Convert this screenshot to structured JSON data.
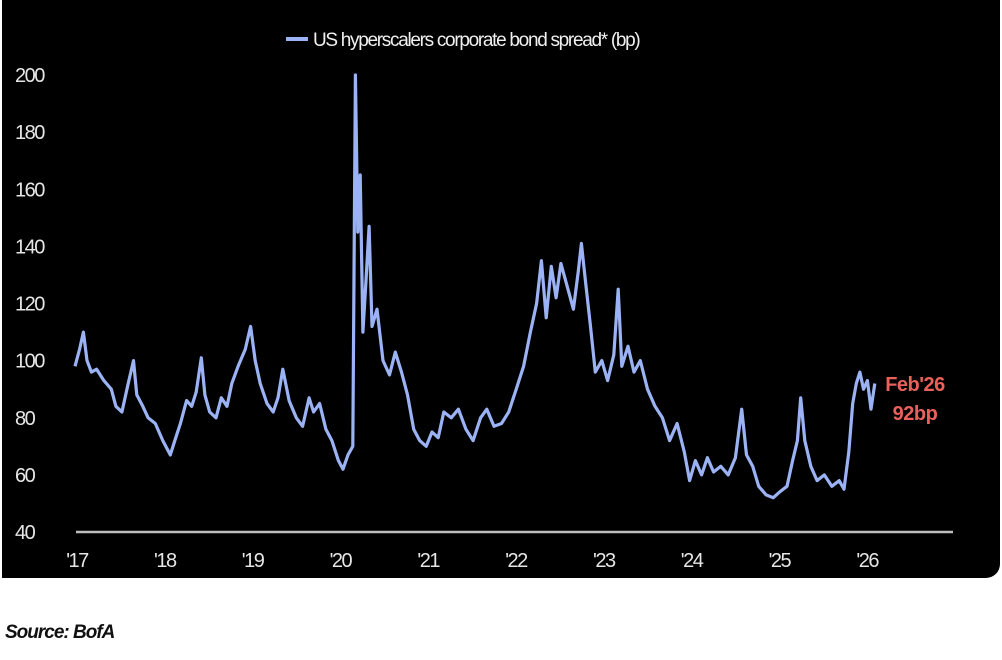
{
  "chart_data": {
    "type": "line",
    "title": "",
    "xlabel": "",
    "ylabel": "",
    "background": "#000000",
    "legend": {
      "placement": "top-center",
      "entries": [
        "US hyperscalers corporate bond spread* (bp)"
      ]
    },
    "ylim": [
      40,
      200
    ],
    "yticks": [
      40,
      60,
      80,
      100,
      120,
      140,
      160,
      180,
      200
    ],
    "xlim": [
      "2017-01-01",
      "2027-01-01"
    ],
    "xticks": [
      {
        "date": "2017-01-01",
        "label": "'17"
      },
      {
        "date": "2018-01-01",
        "label": "'18"
      },
      {
        "date": "2019-01-01",
        "label": "'19"
      },
      {
        "date": "2020-01-01",
        "label": "'20"
      },
      {
        "date": "2021-01-01",
        "label": "'21"
      },
      {
        "date": "2022-01-01",
        "label": "'22"
      },
      {
        "date": "2023-01-01",
        "label": "'23"
      },
      {
        "date": "2024-01-01",
        "label": "'24"
      },
      {
        "date": "2025-01-01",
        "label": "'25"
      },
      {
        "date": "2026-01-01",
        "label": "'26"
      }
    ],
    "grid": false,
    "series": [
      {
        "name": "US hyperscalers corporate bond spread* (bp)",
        "color": "#9bb3f5",
        "points": [
          [
            "2017-01-01",
            98
          ],
          [
            "2017-01-20",
            104
          ],
          [
            "2017-02-05",
            110
          ],
          [
            "2017-02-20",
            100
          ],
          [
            "2017-03-10",
            96
          ],
          [
            "2017-04-01",
            97
          ],
          [
            "2017-05-01",
            93
          ],
          [
            "2017-06-01",
            90
          ],
          [
            "2017-06-20",
            84
          ],
          [
            "2017-07-15",
            82
          ],
          [
            "2017-08-10",
            92
          ],
          [
            "2017-09-01",
            100
          ],
          [
            "2017-09-15",
            88
          ],
          [
            "2017-10-10",
            84
          ],
          [
            "2017-11-01",
            80
          ],
          [
            "2017-12-01",
            78
          ],
          [
            "2018-01-01",
            72
          ],
          [
            "2018-02-01",
            67
          ],
          [
            "2018-02-20",
            72
          ],
          [
            "2018-03-15",
            78
          ],
          [
            "2018-04-10",
            86
          ],
          [
            "2018-05-01",
            84
          ],
          [
            "2018-05-20",
            89
          ],
          [
            "2018-06-10",
            101
          ],
          [
            "2018-06-25",
            88
          ],
          [
            "2018-07-15",
            82
          ],
          [
            "2018-08-10",
            80
          ],
          [
            "2018-09-01",
            87
          ],
          [
            "2018-09-25",
            84
          ],
          [
            "2018-10-15",
            92
          ],
          [
            "2018-11-10",
            98
          ],
          [
            "2018-12-10",
            104
          ],
          [
            "2019-01-01",
            112
          ],
          [
            "2019-01-20",
            100
          ],
          [
            "2019-02-10",
            92
          ],
          [
            "2019-03-10",
            85
          ],
          [
            "2019-04-05",
            82
          ],
          [
            "2019-04-25",
            87
          ],
          [
            "2019-05-15",
            97
          ],
          [
            "2019-06-10",
            86
          ],
          [
            "2019-07-10",
            80
          ],
          [
            "2019-08-05",
            77
          ],
          [
            "2019-09-01",
            87
          ],
          [
            "2019-09-20",
            82
          ],
          [
            "2019-10-15",
            85
          ],
          [
            "2019-11-10",
            76
          ],
          [
            "2019-12-05",
            72
          ],
          [
            "2020-01-01",
            65
          ],
          [
            "2020-01-20",
            62
          ],
          [
            "2020-02-10",
            67
          ],
          [
            "2020-03-01",
            70
          ],
          [
            "2020-03-12",
            200
          ],
          [
            "2020-03-22",
            145
          ],
          [
            "2020-04-01",
            165
          ],
          [
            "2020-04-12",
            110
          ],
          [
            "2020-04-25",
            128
          ],
          [
            "2020-05-08",
            147
          ],
          [
            "2020-05-20",
            112
          ],
          [
            "2020-06-10",
            118
          ],
          [
            "2020-07-05",
            100
          ],
          [
            "2020-08-01",
            95
          ],
          [
            "2020-08-25",
            103
          ],
          [
            "2020-09-20",
            96
          ],
          [
            "2020-10-15",
            88
          ],
          [
            "2020-11-10",
            76
          ],
          [
            "2020-12-05",
            72
          ],
          [
            "2021-01-01",
            70
          ],
          [
            "2021-01-25",
            75
          ],
          [
            "2021-02-20",
            73
          ],
          [
            "2021-03-15",
            82
          ],
          [
            "2021-04-15",
            80
          ],
          [
            "2021-05-15",
            83
          ],
          [
            "2021-06-15",
            76
          ],
          [
            "2021-07-15",
            72
          ],
          [
            "2021-08-15",
            80
          ],
          [
            "2021-09-10",
            83
          ],
          [
            "2021-10-10",
            77
          ],
          [
            "2021-11-10",
            78
          ],
          [
            "2021-12-10",
            82
          ],
          [
            "2022-01-10",
            90
          ],
          [
            "2022-02-10",
            98
          ],
          [
            "2022-03-10",
            110
          ],
          [
            "2022-04-05",
            120
          ],
          [
            "2022-04-25",
            135
          ],
          [
            "2022-05-15",
            115
          ],
          [
            "2022-06-05",
            133
          ],
          [
            "2022-06-25",
            122
          ],
          [
            "2022-07-15",
            134
          ],
          [
            "2022-08-10",
            126
          ],
          [
            "2022-09-05",
            118
          ],
          [
            "2022-09-25",
            131
          ],
          [
            "2022-10-08",
            141
          ],
          [
            "2022-10-25",
            128
          ],
          [
            "2022-11-15",
            112
          ],
          [
            "2022-12-05",
            96
          ],
          [
            "2023-01-01",
            100
          ],
          [
            "2023-01-25",
            93
          ],
          [
            "2023-02-20",
            102
          ],
          [
            "2023-03-10",
            125
          ],
          [
            "2023-03-25",
            98
          ],
          [
            "2023-04-20",
            105
          ],
          [
            "2023-05-15",
            96
          ],
          [
            "2023-06-10",
            100
          ],
          [
            "2023-07-10",
            90
          ],
          [
            "2023-08-10",
            84
          ],
          [
            "2023-09-10",
            80
          ],
          [
            "2023-10-10",
            72
          ],
          [
            "2023-11-10",
            78
          ],
          [
            "2023-12-10",
            68
          ],
          [
            "2024-01-01",
            58
          ],
          [
            "2024-01-25",
            65
          ],
          [
            "2024-02-20",
            60
          ],
          [
            "2024-03-15",
            66
          ],
          [
            "2024-04-10",
            61
          ],
          [
            "2024-05-10",
            63
          ],
          [
            "2024-06-10",
            60
          ],
          [
            "2024-07-10",
            66
          ],
          [
            "2024-08-05",
            83
          ],
          [
            "2024-08-25",
            67
          ],
          [
            "2024-09-20",
            63
          ],
          [
            "2024-10-15",
            56
          ],
          [
            "2024-11-15",
            53
          ],
          [
            "2024-12-15",
            52
          ],
          [
            "2025-01-10",
            54
          ],
          [
            "2025-02-10",
            56
          ],
          [
            "2025-03-05",
            65
          ],
          [
            "2025-03-25",
            72
          ],
          [
            "2025-04-08",
            87
          ],
          [
            "2025-04-25",
            72
          ],
          [
            "2025-05-20",
            63
          ],
          [
            "2025-06-15",
            58
          ],
          [
            "2025-07-15",
            60
          ],
          [
            "2025-08-15",
            56
          ],
          [
            "2025-09-15",
            58
          ],
          [
            "2025-10-05",
            55
          ],
          [
            "2025-10-25",
            68
          ],
          [
            "2025-11-10",
            85
          ],
          [
            "2025-11-25",
            92
          ],
          [
            "2025-12-10",
            96
          ],
          [
            "2025-12-25",
            90
          ],
          [
            "2026-01-10",
            93
          ],
          [
            "2026-01-25",
            83
          ],
          [
            "2026-02-10",
            92
          ]
        ]
      }
    ],
    "annotation": {
      "line1": "Feb'26",
      "line2": "92bp",
      "color": "#e8615a"
    }
  },
  "source": "Source: BofA"
}
